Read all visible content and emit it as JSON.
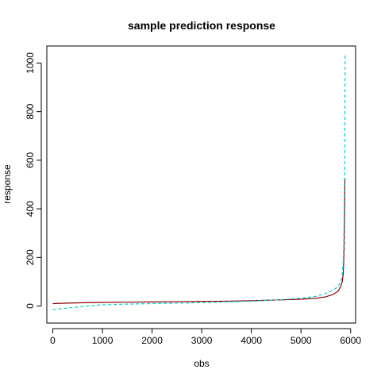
{
  "chart_data": {
    "type": "line",
    "title": "sample prediction response",
    "xlabel": "obs",
    "ylabel": "response",
    "xlim": [
      -120,
      6100
    ],
    "ylim": [
      -70,
      1070
    ],
    "x_ticks": [
      0,
      1000,
      2000,
      3000,
      4000,
      5000,
      6000
    ],
    "y_ticks": [
      0,
      200,
      400,
      600,
      800,
      1000
    ],
    "legend": null,
    "grid": false,
    "series": [
      {
        "style": "solid",
        "color": "#8b0000",
        "points": [
          [
            0,
            10
          ],
          [
            300,
            12
          ],
          [
            700,
            14
          ],
          [
            1000,
            15
          ],
          [
            1500,
            16
          ],
          [
            2000,
            17
          ],
          [
            2500,
            18
          ],
          [
            3000,
            19
          ],
          [
            3500,
            20
          ],
          [
            4000,
            22
          ],
          [
            4500,
            25
          ],
          [
            5000,
            28
          ],
          [
            5300,
            32
          ],
          [
            5500,
            38
          ],
          [
            5650,
            48
          ],
          [
            5750,
            62
          ],
          [
            5800,
            80
          ],
          [
            5830,
            100
          ],
          [
            5850,
            130
          ],
          [
            5860,
            180
          ],
          [
            5868,
            230
          ],
          [
            5875,
            320
          ],
          [
            5880,
            420
          ],
          [
            5885,
            525
          ]
        ]
      },
      {
        "style": "dashed",
        "color": "#00ced1",
        "points": [
          [
            0,
            -15
          ],
          [
            300,
            -8
          ],
          [
            700,
            0
          ],
          [
            1000,
            5
          ],
          [
            1500,
            8
          ],
          [
            2000,
            10
          ],
          [
            2500,
            12
          ],
          [
            3000,
            14
          ],
          [
            3500,
            17
          ],
          [
            4000,
            20
          ],
          [
            4500,
            25
          ],
          [
            5000,
            32
          ],
          [
            5300,
            40
          ],
          [
            5500,
            52
          ],
          [
            5650,
            65
          ],
          [
            5750,
            82
          ],
          [
            5800,
            100
          ],
          [
            5830,
            130
          ],
          [
            5850,
            180
          ],
          [
            5860,
            240
          ],
          [
            5868,
            350
          ],
          [
            5875,
            480
          ],
          [
            5880,
            620
          ],
          [
            5885,
            800
          ],
          [
            5890,
            1040
          ]
        ]
      }
    ]
  }
}
